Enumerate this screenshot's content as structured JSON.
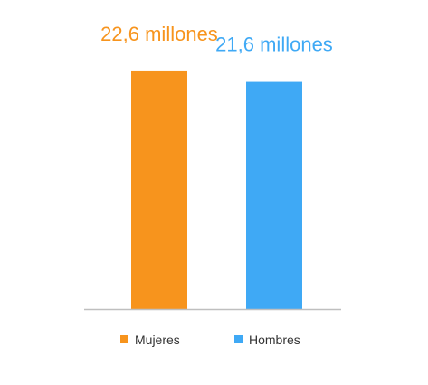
{
  "chart_data": {
    "type": "bar",
    "categories": [
      "Mujeres",
      "Hombres"
    ],
    "values": [
      22.6,
      21.6
    ],
    "data_labels": [
      "22,6 millones",
      "21,6 millones"
    ],
    "colors": [
      "#F7941D",
      "#3FA9F5"
    ],
    "title": "",
    "xlabel": "",
    "ylabel": "",
    "ylim": [
      0,
      25
    ],
    "grid": false,
    "legend": {
      "position": "bottom",
      "entries": [
        {
          "label": "Mujeres",
          "color": "#F7941D"
        },
        {
          "label": "Hombres",
          "color": "#3FA9F5"
        }
      ]
    }
  },
  "styles": {
    "axis_color": "#BFBFBF",
    "legend_text_color": "#333333"
  }
}
